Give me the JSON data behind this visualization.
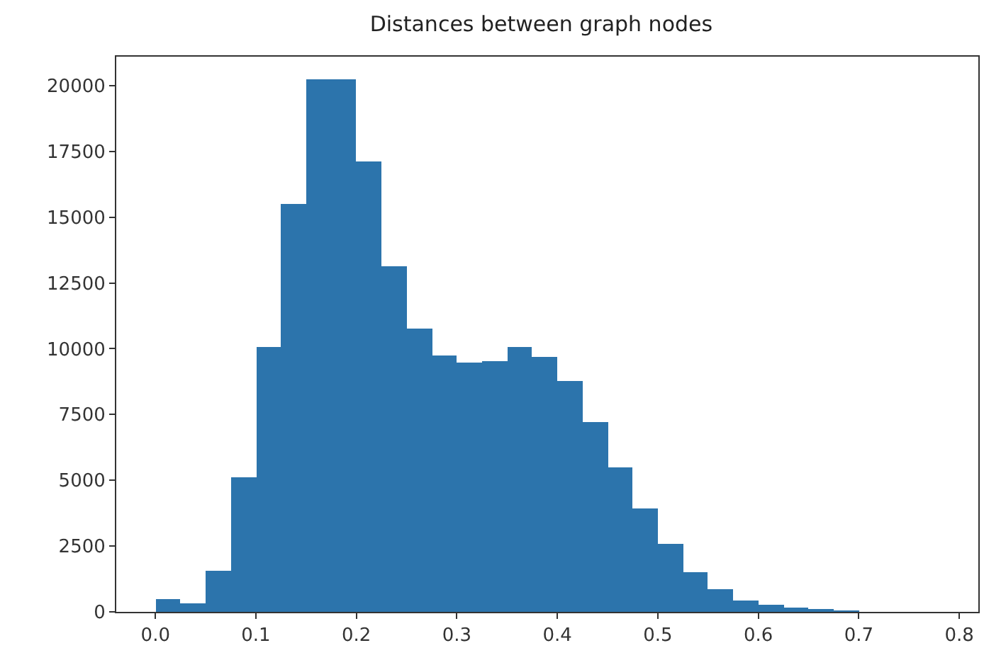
{
  "chart_data": {
    "type": "histogram",
    "title": "Distances between graph nodes",
    "bins": [
      0.0,
      0.025,
      0.05,
      0.075,
      0.1,
      0.125,
      0.15,
      0.175,
      0.2,
      0.225,
      0.25,
      0.275,
      0.3,
      0.325,
      0.35,
      0.375,
      0.4,
      0.425,
      0.45,
      0.475,
      0.5,
      0.525,
      0.55,
      0.575,
      0.6,
      0.625,
      0.65,
      0.675,
      0.7
    ],
    "values": [
      500,
      300,
      1560,
      5090,
      10080,
      15490,
      20230,
      20230,
      17120,
      13120,
      10750,
      9760,
      9490,
      9520,
      10060,
      9670,
      8800,
      7220,
      5480,
      3920,
      2610,
      1530,
      860,
      450,
      270,
      160,
      90,
      40
    ],
    "color": "#2c74ac",
    "xlim": [
      -0.039,
      0.819
    ],
    "xticks": [
      {
        "value": 0,
        "label": "0.0"
      },
      0.1,
      0.2,
      0.3,
      0.4,
      0.5,
      0.6,
      0.7,
      0.8
    ],
    "ylim": [
      0,
      21100
    ],
    "yticks": [
      0,
      2500,
      5000,
      7500,
      10000,
      12500,
      15000,
      17500,
      20000
    ],
    "grid": false
  }
}
